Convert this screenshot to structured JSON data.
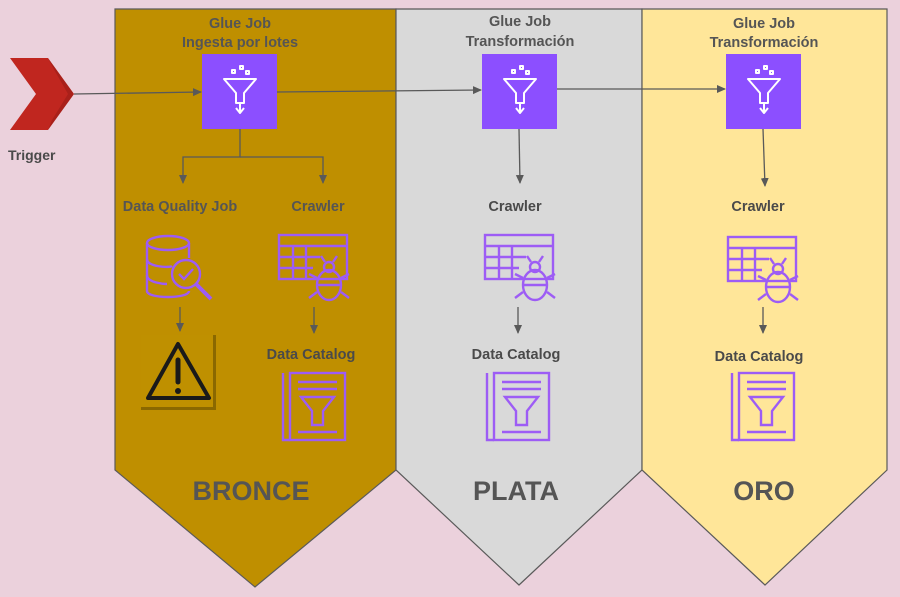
{
  "trigger": {
    "label": "Trigger"
  },
  "lanes": [
    {
      "tier": "BRONCE",
      "glue_job": {
        "title": "Glue Job",
        "subtitle": "Ingesta por lotes"
      },
      "data_quality": {
        "label": "Data Quality Job"
      },
      "crawler": {
        "label": "Crawler"
      },
      "catalog": {
        "label": "Data Catalog"
      }
    },
    {
      "tier": "PLATA",
      "glue_job": {
        "title": "Glue Job",
        "subtitle": "Transformación"
      },
      "crawler": {
        "label": "Crawler"
      },
      "catalog": {
        "label": "Data Catalog"
      }
    },
    {
      "tier": "ORO",
      "glue_job": {
        "title": "Glue Job",
        "subtitle": "Transformación"
      },
      "crawler": {
        "label": "Crawler"
      },
      "catalog": {
        "label": "Data Catalog"
      }
    }
  ],
  "colors": {
    "background": "#ebd1dc",
    "bronce": "#bf8f00",
    "plata": "#d9d9d9",
    "oro": "#ffe699",
    "glue_purple": "#8c4fff",
    "icon_purple": "#8c4fff",
    "trigger_red": "#c0261f",
    "warning_yellow": "#bf9000",
    "text": "#555555",
    "arrow": "#595959"
  }
}
